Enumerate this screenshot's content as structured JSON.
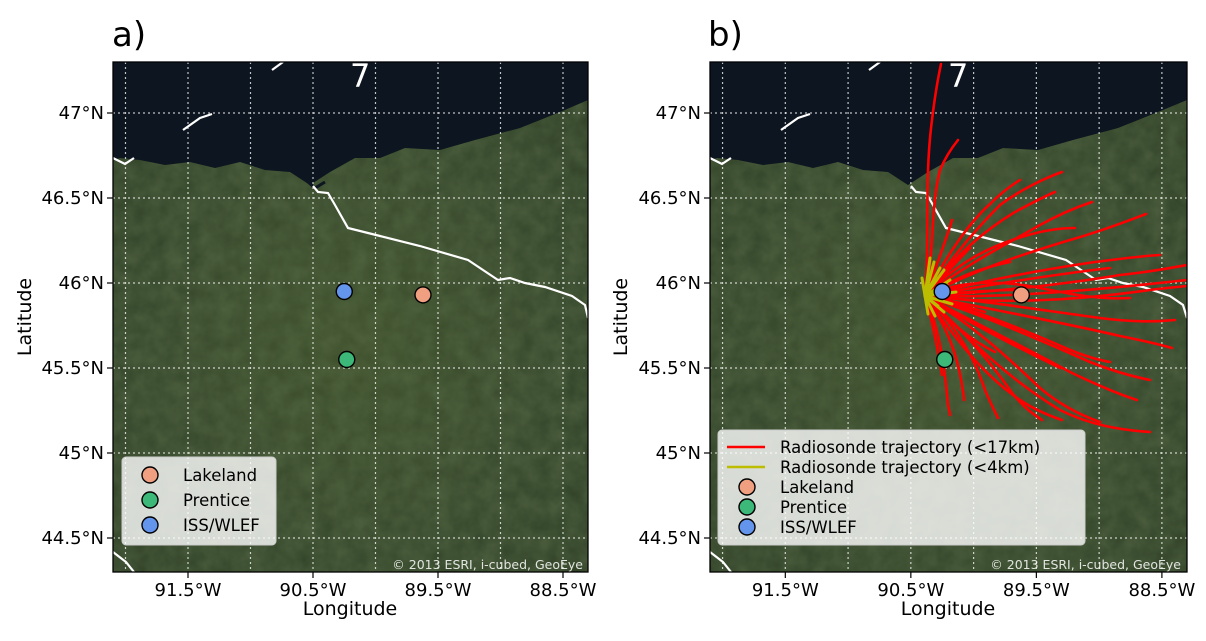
{
  "figure": {
    "panels": [
      {
        "id": "a",
        "label": "a)",
        "xlabel": "Longitude",
        "ylabel": "Latitude",
        "credit": "© 2013 ESRI, i-cubed, GeoEye",
        "legend": {
          "items": [
            {
              "label": "Lakeland",
              "color": "#f0a080"
            },
            {
              "label": "Prentice",
              "color": "#3cb878"
            },
            {
              "label": "ISS/WLEF",
              "color": "#6495ed"
            }
          ]
        }
      },
      {
        "id": "b",
        "label": "b)",
        "xlabel": "Longitude",
        "ylabel": "Latitude",
        "credit": "© 2013 ESRI, i-cubed, GeoEye",
        "legend": {
          "lines": [
            {
              "label": "Radiosonde trajectory (<17km)",
              "color": "#ff0000"
            },
            {
              "label": "Radiosonde trajectory (<4km)",
              "color": "#bcbd00"
            }
          ],
          "items": [
            {
              "label": "Lakeland",
              "color": "#f0a080"
            },
            {
              "label": "Prentice",
              "color": "#3cb878"
            },
            {
              "label": "ISS/WLEF",
              "color": "#6495ed"
            }
          ]
        }
      }
    ],
    "map_extent": {
      "lon": [
        -92.1,
        -88.3
      ],
      "lat": [
        44.3,
        47.3
      ]
    },
    "x_ticks": [
      {
        "value": -91.5,
        "label": "91.5°W"
      },
      {
        "value": -90.5,
        "label": "90.5°W"
      },
      {
        "value": -89.5,
        "label": "89.5°W"
      },
      {
        "value": -88.5,
        "label": "88.5°W"
      }
    ],
    "x_grid": [
      -92.0,
      -91.5,
      -91.0,
      -90.5,
      -90.0,
      -89.5,
      -89.0,
      -88.5
    ],
    "y_ticks": [
      {
        "value": 47.0,
        "label": "47°N"
      },
      {
        "value": 46.5,
        "label": "46.5°N"
      },
      {
        "value": 46.0,
        "label": "46°N"
      },
      {
        "value": 45.5,
        "label": "45.5°N"
      },
      {
        "value": 45.0,
        "label": "45°N"
      },
      {
        "value": 44.5,
        "label": "44.5°N"
      }
    ],
    "sites": [
      {
        "name": "Lakeland",
        "lon": -89.62,
        "lat": 45.93
      },
      {
        "name": "Prentice",
        "lon": -90.23,
        "lat": 45.55
      },
      {
        "name": "ISS/WLEF",
        "lon": -90.25,
        "lat": 45.95
      }
    ],
    "highway_label": "7"
  }
}
